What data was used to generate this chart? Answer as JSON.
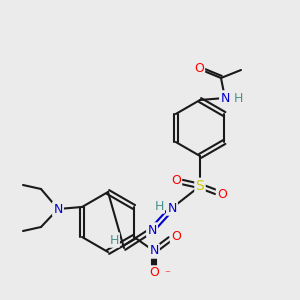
{
  "bg_color": "#ebebeb",
  "bond_color": "#1a1a1a",
  "atom_colors": {
    "O": "#ff0000",
    "N": "#0000cc",
    "S": "#cccc00",
    "H": "#4a9090",
    "C": "#1a1a1a"
  },
  "figsize": [
    3.0,
    3.0
  ],
  "dpi": 100
}
